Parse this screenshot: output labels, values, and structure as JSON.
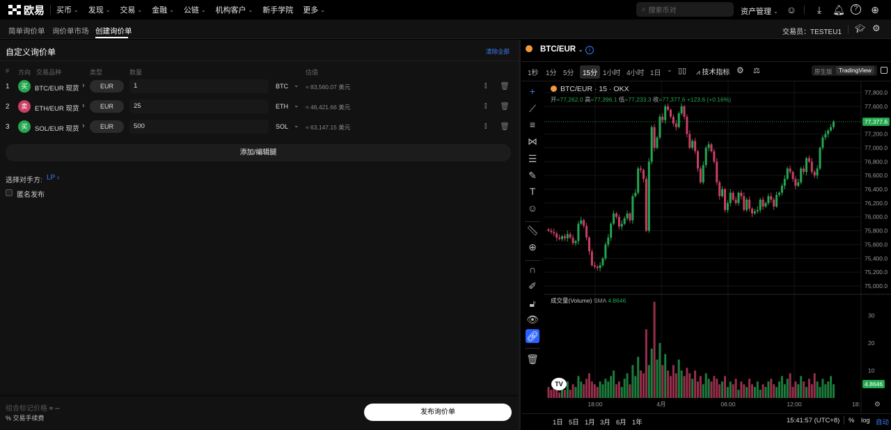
{
  "topnav": {
    "logo_text": "欧易",
    "items": [
      {
        "label": "买币",
        "dropdown": true
      },
      {
        "label": "发现",
        "dropdown": true
      },
      {
        "label": "交易",
        "dropdown": true
      },
      {
        "label": "金融",
        "dropdown": true
      },
      {
        "label": "公链",
        "dropdown": true
      },
      {
        "label": "机构客户",
        "dropdown": true
      },
      {
        "label": "新手学院",
        "dropdown": false
      },
      {
        "label": "更多",
        "dropdown": true
      }
    ],
    "search_placeholder": "搜索币对",
    "asset_mgmt": "资产管理",
    "icons": [
      "user-icon",
      "download-icon",
      "bell-icon",
      "help-icon",
      "globe-icon"
    ]
  },
  "subnav": {
    "tabs": [
      "简单询价单",
      "询价单市场",
      "创建询价单"
    ],
    "active_tab": "创建询价单",
    "trader_label": "交易员：",
    "trader_name": "TESTEU1"
  },
  "form": {
    "title": "自定义询价单",
    "clear_all": "清除全部",
    "headers": {
      "num": "#",
      "direction": "方向",
      "instrument": "交易品种",
      "type": "类型",
      "quantity": "数量",
      "estimate": "估值"
    },
    "legs": [
      {
        "num": "1",
        "side": "买",
        "side_type": "buy",
        "instrument": "BTC/EUR 现货",
        "type": "EUR",
        "quantity": "1",
        "unit": "BTC",
        "estimate": "≈ 83,560.07 美元"
      },
      {
        "num": "2",
        "side": "卖",
        "side_type": "sell",
        "instrument": "ETH/EUR 现货",
        "type": "EUR",
        "quantity": "25",
        "unit": "ETH",
        "estimate": "≈ 46,421.66 美元"
      },
      {
        "num": "3",
        "side": "买",
        "side_type": "buy",
        "instrument": "SOL/EUR 现货",
        "type": "EUR",
        "quantity": "500",
        "unit": "SOL",
        "estimate": "≈ 63,147.15 美元"
      }
    ],
    "add_edit_legs": "添加/编辑腿",
    "counterparty_label": "选择对手方:",
    "counterparty_value": "LP",
    "anonymous_label": "匿名发布",
    "anonymous_checked": false,
    "mark_price_label": "组合标记价格",
    "mark_price_value": "≈ --",
    "fee_label": "% 交易手续费",
    "publish": "发布询价单"
  },
  "chart": {
    "pair": "BTC/EUR",
    "timeframes": [
      "1秒",
      "1分",
      "5分",
      "15分",
      "1小时",
      "4小时",
      "1日"
    ],
    "active_timeframe": "15分",
    "indicators": "技术指标",
    "view_native": "原生版",
    "view_tv": "TradingView",
    "active_view": "TradingView",
    "legend_title": "BTC/EUR · 15 · OKX",
    "ohlc": {
      "open_label": "开",
      "open": "=77,262.0",
      "high_label": "高",
      "high": "=77,396.1",
      "low_label": "低",
      "low": "=77,233.3",
      "close_label": "收",
      "close": "=77,377.6",
      "change": "+123.6 (+0.16%)"
    },
    "volume_label": "成交量(Volume)",
    "volume_sma_label": "SMA",
    "volume_sma": "4.8646",
    "last_price": "77,377.6",
    "last_volume": "4.8646",
    "price_ticks": [
      "77,800.0",
      "77,600.0",
      "77,200.0",
      "77,000.0",
      "76,800.0",
      "76,600.0",
      "76,400.0",
      "76,200.0",
      "76,000.0",
      "75,800.0",
      "75,600.0",
      "75,400.0",
      "75,200.0",
      "75,000.0"
    ],
    "volume_ticks": [
      "30",
      "20",
      "10"
    ],
    "time_ticks": [
      "18:00",
      "4月",
      "06:00",
      "12:00",
      "18:"
    ],
    "ranges": [
      "1日",
      "5日",
      "1月",
      "3月",
      "6月",
      "1年"
    ],
    "clock": "15:41:57 (UTC+8)",
    "pct": "%",
    "log": "log",
    "auto": "自动",
    "colors": {
      "up": "#25a750",
      "down": "#ca3f64",
      "accent": "#3d7cf5"
    }
  },
  "chart_data": {
    "type": "candlestick",
    "interval": "15m",
    "ylim": [
      75000,
      77800
    ],
    "close": [
      75800,
      75780,
      75760,
      75700,
      75680,
      75720,
      75690,
      75750,
      75700,
      75620,
      75650,
      75900,
      75950,
      75870,
      75700,
      75500,
      75300,
      75280,
      75260,
      75300,
      75400,
      75600,
      75700,
      75900,
      76050,
      76000,
      75860,
      75900,
      75980,
      76050,
      75950,
      76300,
      76350,
      76700,
      76680,
      76550,
      75800,
      76800,
      77300,
      77000,
      77150,
      77450,
      77400,
      77600,
      77550,
      77450,
      77350,
      77300,
      77500,
      77600,
      77450,
      77200,
      77000,
      77100,
      76950,
      76700,
      76500,
      76750,
      77000,
      77050,
      76950,
      76800,
      76500,
      76300,
      76400,
      76100,
      76200,
      76350,
      76250,
      76200,
      76350,
      76300,
      76100,
      76250,
      76120,
      76050,
      76080,
      76100,
      76250,
      76150,
      76200,
      76300,
      76250,
      76150,
      76320,
      76350,
      76450,
      76550,
      76700,
      76650,
      76550,
      76450,
      76500,
      76700,
      76650,
      76850,
      76800,
      76650,
      76600,
      76700,
      77000,
      77150,
      77200,
      77250,
      77300,
      77378
    ],
    "volume": [
      4,
      3,
      5,
      3,
      2,
      4,
      3,
      6,
      3,
      5,
      4,
      8,
      6,
      5,
      7,
      9,
      6,
      5,
      4,
      6,
      5,
      7,
      6,
      8,
      10,
      5,
      6,
      4,
      7,
      9,
      5,
      12,
      8,
      15,
      10,
      9,
      25,
      12,
      18,
      35,
      14,
      20,
      12,
      16,
      10,
      8,
      12,
      9,
      14,
      10,
      8,
      11,
      9,
      7,
      10,
      6,
      8,
      5,
      9,
      7,
      6,
      8,
      7,
      5,
      6,
      8,
      4,
      6,
      5,
      7,
      3,
      6,
      5,
      4,
      7,
      5,
      4,
      6,
      3,
      5,
      4,
      6,
      7,
      5,
      4,
      6,
      8,
      5,
      7,
      9,
      4,
      6,
      5,
      8,
      6,
      4,
      7,
      5,
      9,
      6,
      4,
      7,
      5,
      6,
      8,
      5
    ]
  }
}
